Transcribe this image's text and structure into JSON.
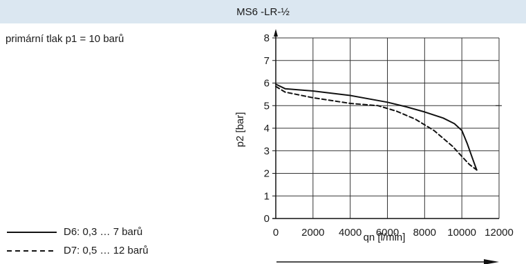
{
  "header": {
    "title": "MS6 -LR-½"
  },
  "condition_text": "primární tlak p1 = 10 barů",
  "legend": [
    {
      "label": "D6: 0,3 … 7 barů",
      "style": "solid"
    },
    {
      "label": "D7: 0,5 … 12 barů",
      "style": "dashed"
    }
  ],
  "chart_data": {
    "type": "line",
    "title": "MS6 -LR-½",
    "xlabel": "qn [l/min]",
    "ylabel": "p2 [bar]",
    "xlim": [
      0,
      12000
    ],
    "ylim": [
      0,
      8
    ],
    "x_ticks": [
      0,
      2000,
      4000,
      6000,
      8000,
      10000,
      12000
    ],
    "y_ticks": [
      0,
      1,
      2,
      3,
      4,
      5,
      6,
      7,
      8
    ],
    "grid": true,
    "series": [
      {
        "name": "D6: 0,3 … 7 barů",
        "style": "solid",
        "x": [
          0,
          500,
          2000,
          4000,
          6000,
          7000,
          8000,
          9000,
          9600,
          10000,
          10300,
          10600,
          10800
        ],
        "y": [
          5.95,
          5.75,
          5.65,
          5.45,
          5.15,
          4.95,
          4.72,
          4.45,
          4.2,
          3.9,
          3.3,
          2.6,
          2.15
        ]
      },
      {
        "name": "D7: 0,5 … 12 barů",
        "style": "dashed",
        "x": [
          0,
          500,
          2000,
          4000,
          5500,
          6500,
          7500,
          8500,
          9500,
          10000,
          10400,
          10800
        ],
        "y": [
          5.85,
          5.6,
          5.35,
          5.1,
          5.0,
          4.75,
          4.4,
          3.9,
          3.2,
          2.75,
          2.4,
          2.15
        ]
      }
    ]
  }
}
